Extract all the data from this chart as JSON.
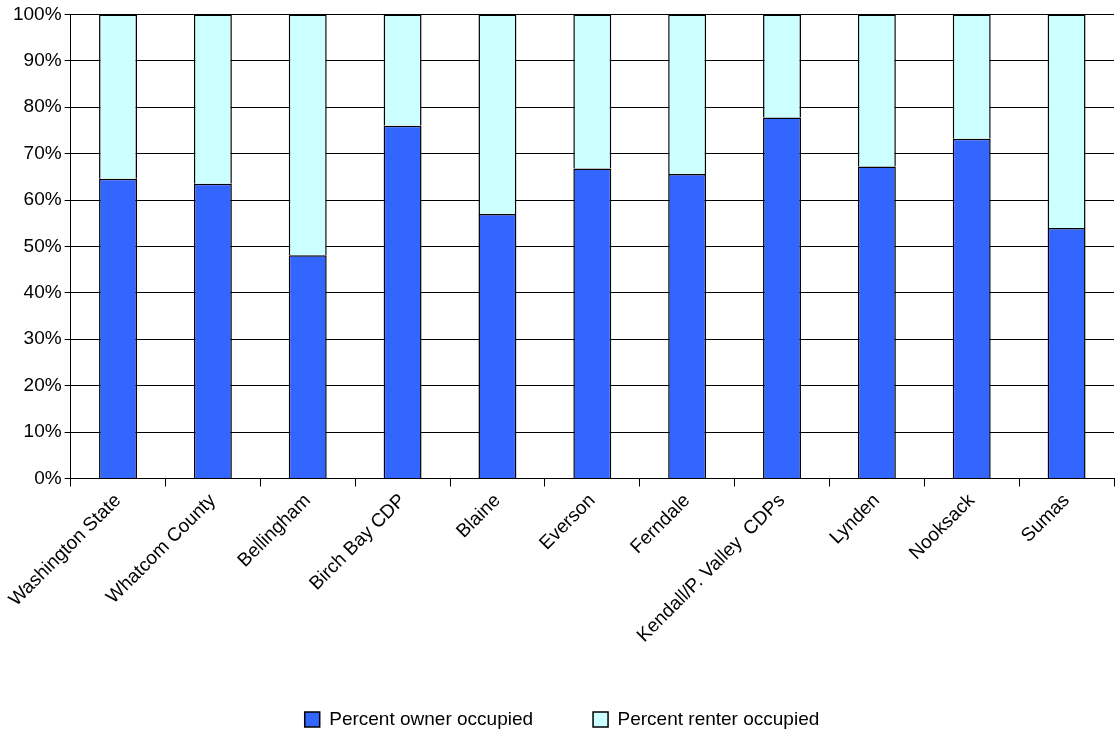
{
  "chart_data": {
    "type": "bar",
    "stacked": true,
    "categories": [
      "Washington State",
      "Whatcom County",
      "Bellingham",
      "Birch Bay CDP",
      "Blaine",
      "Everson",
      "Ferndale",
      "Kendall/P. Valley  CDPs",
      "Lynden",
      "Nooksack",
      "Sumas"
    ],
    "series": [
      {
        "name": "Percent owner occupied",
        "color": "#3366ff",
        "values": [
          64.6,
          63.5,
          48.1,
          76.0,
          57.0,
          66.8,
          65.6,
          77.8,
          67.2,
          73.2,
          54.0
        ]
      },
      {
        "name": "Percent renter occupied",
        "color": "#ccffff",
        "values": [
          35.4,
          36.5,
          51.9,
          24.0,
          43.0,
          33.2,
          34.4,
          22.2,
          32.8,
          26.8,
          46.0
        ]
      }
    ],
    "ylim": [
      0,
      100
    ],
    "yticks": [
      {
        "value": 0,
        "label": "0%"
      },
      {
        "value": 10,
        "label": "10%"
      },
      {
        "value": 20,
        "label": "20%"
      },
      {
        "value": 30,
        "label": "30%"
      },
      {
        "value": 40,
        "label": "40%"
      },
      {
        "value": 50,
        "label": "50%"
      },
      {
        "value": 60,
        "label": "60%"
      },
      {
        "value": 70,
        "label": "70%"
      },
      {
        "value": 80,
        "label": "80%"
      },
      {
        "value": 90,
        "label": "90%"
      },
      {
        "value": 100,
        "label": "100%"
      }
    ],
    "grid": "y",
    "legend": "bottom"
  }
}
